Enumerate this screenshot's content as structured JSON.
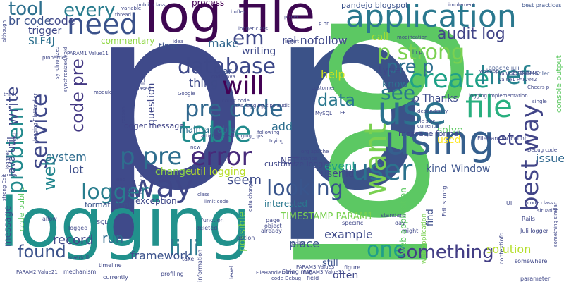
{
  "words": [
    {
      "text": "p",
      "color": "#3f4a8a"
    },
    {
      "text": "p",
      "color": "#3b5288"
    },
    {
      "text": "log",
      "color": "#5cc863"
    },
    {
      "text": "logging",
      "color": "#21918c"
    },
    {
      "text": "log file",
      "color": "#3e0751"
    },
    {
      "text": "application",
      "color": "#2a788e"
    },
    {
      "text": "use",
      "color": "#2c728e"
    },
    {
      "text": "using",
      "color": "#355f8d"
    },
    {
      "text": "file",
      "color": "#29af7f"
    },
    {
      "text": "need",
      "color": "#3b528b"
    },
    {
      "text": "way",
      "color": "#3f4788"
    },
    {
      "text": "table",
      "color": "#228b8d"
    },
    {
      "text": "error",
      "color": "#472a7a"
    },
    {
      "text": "p pre",
      "color": "#2e6e8e"
    },
    {
      "text": "database",
      "color": "#3e4989"
    },
    {
      "text": "pre code",
      "color": "#31688e"
    },
    {
      "text": "create",
      "color": "#1fa188"
    },
    {
      "text": "will",
      "color": "#440154"
    },
    {
      "text": "user",
      "color": "#2c728e"
    },
    {
      "text": "want",
      "color": "#7ad151"
    },
    {
      "text": "best way",
      "color": "#414487"
    },
    {
      "text": "href",
      "color": "#26828e"
    },
    {
      "text": "p strong",
      "color": "#7ad151"
    },
    {
      "text": "looking",
      "color": "#39558c"
    },
    {
      "text": "logger",
      "color": "#287d8e"
    },
    {
      "text": "li li",
      "color": "#2a788e"
    },
    {
      "text": "one",
      "color": "#1f9e89"
    },
    {
      "text": "found",
      "color": "#3b528b"
    },
    {
      "text": "something",
      "color": "#433e85"
    },
    {
      "text": "problem",
      "color": "#238a8d"
    },
    {
      "text": "service",
      "color": "#3f4889"
    },
    {
      "text": "code pre",
      "color": "#443983"
    },
    {
      "text": "web",
      "color": "#24878e"
    },
    {
      "text": "write",
      "color": "#3f4889"
    },
    {
      "text": "tool",
      "color": "#2d708e"
    },
    {
      "text": "every",
      "color": "#287c8e"
    },
    {
      "text": "see",
      "color": "#2a788e"
    },
    {
      "text": "data",
      "color": "#2a788e"
    },
    {
      "text": "pre p",
      "color": "#2e6f8e"
    },
    {
      "text": "audit log",
      "color": "#414487"
    },
    {
      "text": "em",
      "color": "#3f4788"
    },
    {
      "text": "etc",
      "color": "#404588"
    },
    {
      "text": "solution",
      "color": "#b5de2b"
    },
    {
      "text": "example",
      "color": "#3e4a89"
    },
    {
      "text": "place",
      "color": "#3a548c"
    },
    {
      "text": "framework",
      "color": "#3b528b"
    },
    {
      "text": "run",
      "color": "#2f6b8e"
    },
    {
      "text": "record",
      "color": "#3f4788"
    },
    {
      "text": "event",
      "color": "#1e9c89"
    },
    {
      "text": "user id",
      "color": "#3f4788"
    },
    {
      "text": "seem",
      "color": "#3e4c8a"
    },
    {
      "text": "add",
      "color": "#2e6e8e"
    },
    {
      "text": "lot",
      "color": "#3d4e8a"
    },
    {
      "text": "system",
      "color": "#2f6c8e"
    },
    {
      "text": "change",
      "color": "#8fd744"
    },
    {
      "text": "util logging",
      "color": "#b8de29"
    },
    {
      "text": "issue",
      "color": "#31688e"
    },
    {
      "text": "kind",
      "color": "#3a538b"
    },
    {
      "text": "Window",
      "color": "#3b528b"
    },
    {
      "text": "solve",
      "color": "#5ec962"
    },
    {
      "text": "make",
      "color": "#31678e"
    },
    {
      "text": "thing",
      "color": "#3e4a89"
    },
    {
      "text": "writing",
      "color": "#3e4989"
    },
    {
      "text": "rel nofollow",
      "color": "#3f4889"
    },
    {
      "text": "question",
      "color": "#3f4788"
    },
    {
      "text": "help",
      "color": "#cde11d"
    },
    {
      "text": "know",
      "color": "#2d718e"
    },
    {
      "text": "type",
      "color": "#3f4889"
    },
    {
      "text": "call",
      "color": "#aadc32"
    },
    {
      "text": "p Thanks",
      "color": "#3e4c8a"
    },
    {
      "text": "br code",
      "color": "#3b528b"
    },
    {
      "text": "code",
      "color": "#3f4788"
    },
    {
      "text": "trigger",
      "color": "#3f4889"
    },
    {
      "text": "SLF4J",
      "color": "#2d708e"
    },
    {
      "text": "commentary",
      "color": "#8fd744"
    },
    {
      "text": "process",
      "color": "#440154"
    },
    {
      "text": "time",
      "color": "#3b528b"
    },
    {
      "text": "far",
      "color": "#3b528b"
    },
    {
      "text": "logger message",
      "color": "#414487"
    },
    {
      "text": "maintainable",
      "color": "#2e6d8e"
    },
    {
      "text": "NET",
      "color": "#404688"
    },
    {
      "text": "customize logger",
      "color": "#3f4788"
    },
    {
      "text": "exception",
      "color": "#3f4889"
    },
    {
      "text": "format html",
      "color": "#3a538b"
    },
    {
      "text": "interested",
      "color": "#2a788e"
    },
    {
      "text": "possible",
      "color": "#7ad151"
    },
    {
      "text": "TIMESTAMP PARAM1",
      "color": "#7ad151"
    },
    {
      "text": "find",
      "color": "#3d4e8a"
    },
    {
      "text": "message format",
      "color": "#3f4788"
    },
    {
      "text": "used",
      "color": "#fde725"
    },
    {
      "text": "web application",
      "color": "#5ec962"
    },
    {
      "text": "still",
      "color": "#3b528b"
    },
    {
      "text": "often",
      "color": "#3f4788"
    },
    {
      "text": "java util",
      "color": "#3f4889"
    },
    {
      "text": "message",
      "color": "#3b528b"
    },
    {
      "text": "code public",
      "color": "#5ec962"
    },
    {
      "text": "console output",
      "color": "#5ec962"
    },
    {
      "text": "pandejo blogspot",
      "color": "#3b528b"
    },
    {
      "text": "best practices",
      "color": "#3b528b"
    },
    {
      "text": "web application",
      "color": "#7ad151"
    },
    {
      "text": "apache juli",
      "color": "#3b528b"
    },
    {
      "text": "juli FileHandler",
      "color": "#3b528b"
    },
    {
      "text": "FileHandler count",
      "color": "#3f4788"
    },
    {
      "text": "Value21 PARAM3",
      "color": "#3f4788"
    },
    {
      "text": "Value1 PARAM2",
      "color": "#3f4788"
    },
    {
      "text": "Juli logger",
      "color": "#3f4788"
    },
    {
      "text": "Debug code",
      "color": "#3f4788"
    },
    {
      "text": "code class",
      "color": "#3f4788"
    },
    {
      "text": "logger class",
      "color": "#3f4788"
    },
    {
      "text": "String msg",
      "color": "#3f4788"
    },
    {
      "text": "FileHandler limit",
      "color": "#3f4788"
    },
    {
      "text": "PARAM3 Value3",
      "color": "#3f4788"
    },
    {
      "text": "PARAM3 Value31",
      "color": "#3f4788"
    },
    {
      "text": "PARAM1 Value11",
      "color": "#3f4788"
    },
    {
      "text": "rails_logging_tips audit",
      "color": "#3f4788"
    },
    {
      "text": "articles rails_logging_tips",
      "color": "#3f4788"
    },
    {
      "text": "Cheers p",
      "color": "#3f4788"
    },
    {
      "text": "figure",
      "color": "#3f4788"
    },
    {
      "text": "field",
      "color": "#3f4788"
    },
    {
      "text": "currently",
      "color": "#3f4788"
    },
    {
      "text": "mechanism",
      "color": "#3f4788"
    },
    {
      "text": "timeline",
      "color": "#3f4788"
    },
    {
      "text": "overkill",
      "color": "#3f4788"
    },
    {
      "text": "logged",
      "color": "#3f4788"
    },
    {
      "text": "allow",
      "color": "#3f4788"
    },
    {
      "text": "SQL",
      "color": "#3f4788"
    },
    {
      "text": "information",
      "color": "#3f4788"
    },
    {
      "text": "profiling",
      "color": "#3f4788"
    },
    {
      "text": "level",
      "color": "#3f4788"
    },
    {
      "text": "take",
      "color": "#3f4788"
    },
    {
      "text": "option",
      "color": "#3f4788"
    },
    {
      "text": "function",
      "color": "#3f4788"
    },
    {
      "text": "deleted",
      "color": "#3f4788"
    },
    {
      "text": "object",
      "color": "#3f4788"
    },
    {
      "text": "page",
      "color": "#3f4788"
    },
    {
      "text": "already",
      "color": "#3f4788"
    },
    {
      "text": "point",
      "color": "#3f4788"
    },
    {
      "text": "standard",
      "color": "#3f4788"
    },
    {
      "text": "specific",
      "color": "#3f4788"
    },
    {
      "text": "might",
      "color": "#3f4788"
    },
    {
      "text": "day",
      "color": "#3f4788"
    },
    {
      "text": "situation",
      "color": "#3f4788"
    },
    {
      "text": "somewhere",
      "color": "#3f4788"
    },
    {
      "text": "parameter",
      "color": "#3f4788"
    },
    {
      "text": "something similar",
      "color": "#3f4788"
    },
    {
      "text": "contextinfo",
      "color": "#3f4788"
    },
    {
      "text": "UI",
      "color": "#3f4788"
    },
    {
      "text": "Rails",
      "color": "#3f4788"
    },
    {
      "text": "Edit strong",
      "color": "#3f4788"
    },
    {
      "text": "strong Edit",
      "color": "#3f4788"
    },
    {
      "text": "file size",
      "color": "#3f4788"
    },
    {
      "text": "current",
      "color": "#3f4788"
    },
    {
      "text": "dependency",
      "color": "#3f4788"
    },
    {
      "text": "instance",
      "color": "#3f4788"
    },
    {
      "text": "org apache",
      "color": "#3f4788"
    },
    {
      "text": "trying",
      "color": "#3f4788"
    },
    {
      "text": "MySQL",
      "color": "#3f4788"
    },
    {
      "text": "following",
      "color": "#3f4788"
    },
    {
      "text": "new",
      "color": "#3f4788"
    },
    {
      "text": "count code",
      "color": "#3f4788"
    },
    {
      "text": "code java",
      "color": "#3f4788"
    },
    {
      "text": "customer",
      "color": "#3f4788"
    },
    {
      "text": "Google",
      "color": "#3f4788"
    },
    {
      "text": "based",
      "color": "#3f4788"
    },
    {
      "text": "ILog",
      "color": "#3f4788"
    },
    {
      "text": "idea",
      "color": "#3f4788"
    },
    {
      "text": "public class",
      "color": "#3f4788"
    },
    {
      "text": "variable",
      "color": "#3f4788"
    },
    {
      "text": "thread",
      "color": "#3f4788"
    },
    {
      "text": "buffer",
      "color": "#3f4788"
    },
    {
      "text": "project",
      "color": "#3f4788"
    },
    {
      "text": "implement",
      "color": "#3f4788"
    },
    {
      "text": "insert",
      "color": "#3f4788"
    },
    {
      "text": "modification",
      "color": "#3f4788"
    },
    {
      "text": "hr p",
      "color": "#3f4788"
    },
    {
      "text": "webapp",
      "color": "#3f4788"
    },
    {
      "text": "single",
      "color": "#3f4788"
    },
    {
      "text": "logging implementation",
      "color": "#3f4788"
    },
    {
      "text": "module",
      "color": "#3f4788"
    },
    {
      "text": "properties",
      "color": "#3f4788"
    },
    {
      "text": "synchronized",
      "color": "#3f4788"
    },
    {
      "text": "synchronized void",
      "color": "#3f4788"
    },
    {
      "text": "think",
      "color": "#3f4788"
    },
    {
      "text": "logging FileHandler",
      "color": "#3f4788"
    },
    {
      "text": "log4net",
      "color": "#3f4788"
    },
    {
      "text": "log4j",
      "color": "#3f4788"
    },
    {
      "text": "although",
      "color": "#3f4788"
    },
    {
      "text": "class",
      "color": "#3f4788"
    },
    {
      "text": "limit code",
      "color": "#3f4788"
    },
    {
      "text": "end",
      "color": "#3f4788"
    },
    {
      "text": "org",
      "color": "#3f4788"
    },
    {
      "text": "data change",
      "color": "#3f4788"
    },
    {
      "text": "reason",
      "color": "#3f4788"
    },
    {
      "text": "code org",
      "color": "#3f4788"
    },
    {
      "text": "code Debug",
      "color": "#3f4788"
    },
    {
      "text": "p hr",
      "color": "#3f4788"
    },
    {
      "text": "EF",
      "color": "#3f4788"
    },
    {
      "text": "PARAM2 Value21",
      "color": "#3f4788"
    }
  ]
}
